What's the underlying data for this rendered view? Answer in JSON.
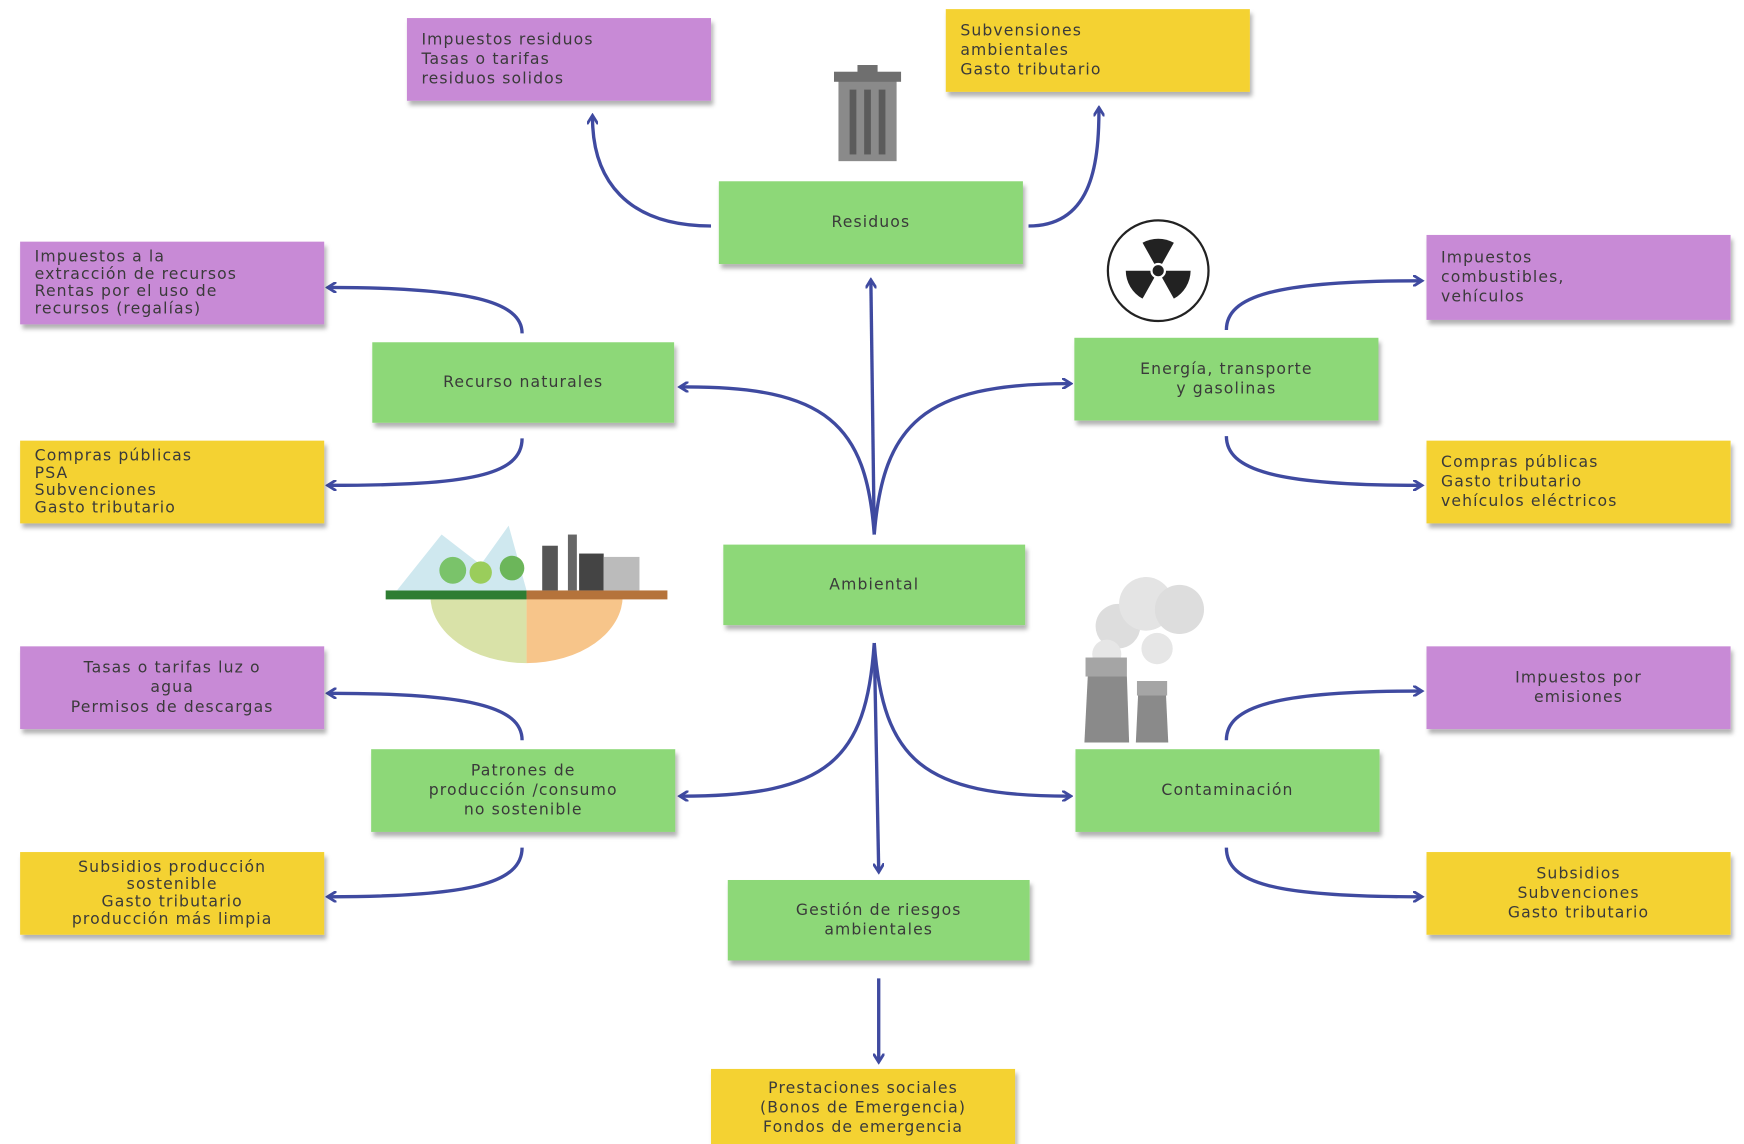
{
  "nodes": [
    {
      "lines": [
        "Ambiental"
      ]
    },
    {
      "lines": [
        "Residuos"
      ]
    },
    {
      "lines": [
        "Recurso naturales"
      ]
    },
    {
      "lines": [
        "Energía, transporte",
        "y gasolinas"
      ]
    },
    {
      "lines": [
        "Patrones de",
        "producción /consumo",
        "no sostenible"
      ]
    },
    {
      "lines": [
        "Contaminación"
      ]
    },
    {
      "lines": [
        "Gestión de riesgos",
        "ambientales"
      ]
    },
    {
      "lines": [
        "Impuestos residuos",
        "Tasas o tarifas",
        "residuos solidos"
      ]
    },
    {
      "lines": [
        "Subvensiones",
        "ambientales",
        "Gasto tributario"
      ]
    },
    {
      "lines": [
        "Impuestos a la",
        "extracción de recursos",
        "Rentas por el uso de",
        "recursos (regalías)"
      ]
    },
    {
      "lines": [
        "Compras públicas",
        "PSA",
        "Subvenciones",
        "Gasto tributario"
      ]
    },
    {
      "lines": [
        "Impuestos",
        "combustibles,",
        "vehículos"
      ]
    },
    {
      "lines": [
        "Compras públicas",
        "Gasto tributario",
        "vehículos eléctricos"
      ]
    },
    {
      "lines": [
        "Tasas o tarifas luz o",
        "agua",
        "Permisos de descargas"
      ]
    },
    {
      "lines": [
        "Subsidios producción",
        "sostenible",
        "Gasto tributario",
        "producción más limpia"
      ]
    },
    {
      "lines": [
        "Impuestos por",
        "emisiones"
      ]
    },
    {
      "lines": [
        "Subsidios",
        "Subvenciones",
        "Gasto tributario"
      ]
    },
    {
      "lines": [
        "Prestaciones sociales",
        "(Bonos de Emergencia)",
        "Fondos de emergencia"
      ]
    }
  ]
}
